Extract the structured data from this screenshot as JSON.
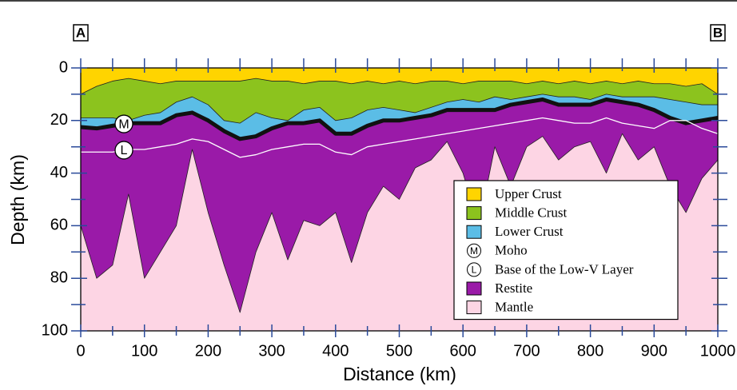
{
  "chart_data": {
    "type": "area",
    "left_label": "A",
    "right_label": "B",
    "x_label": "Distance (km)",
    "y_label": "Depth (km)",
    "x": [
      0,
      25,
      50,
      75,
      100,
      125,
      150,
      175,
      200,
      225,
      250,
      275,
      300,
      325,
      350,
      375,
      400,
      425,
      450,
      475,
      500,
      525,
      550,
      575,
      600,
      625,
      650,
      675,
      700,
      725,
      750,
      775,
      800,
      825,
      850,
      875,
      900,
      925,
      950,
      975,
      1000
    ],
    "series": [
      {
        "name": "Upper Crust",
        "color": "#ffd400",
        "values": [
          10,
          7,
          5,
          4,
          5,
          6,
          5,
          5,
          5,
          5,
          5,
          4,
          5,
          5,
          6,
          5,
          5,
          6,
          5,
          6,
          5,
          6,
          5,
          5,
          6,
          5,
          5,
          5,
          6,
          5,
          6,
          5,
          6,
          5,
          6,
          5,
          6,
          6,
          7,
          6,
          10
        ]
      },
      {
        "name": "Middle Crust",
        "color": "#8cc31e",
        "values": [
          19,
          19,
          19,
          20,
          18,
          17,
          13,
          11,
          14,
          20,
          21,
          17,
          19,
          20,
          16,
          15,
          20,
          19,
          16,
          15,
          16,
          17,
          15,
          13,
          12,
          13,
          11,
          12,
          11,
          10,
          11,
          11,
          12,
          10,
          11,
          11,
          11,
          12,
          13,
          14,
          14
        ]
      },
      {
        "name": "Lower Crust",
        "color": "#5bbde6"
      },
      {
        "name": "Moho",
        "symbol": "M",
        "color": "#111111",
        "values": [
          22.5,
          23,
          22,
          21,
          21,
          21,
          18,
          17,
          20,
          24,
          27,
          26,
          23,
          21,
          21,
          20,
          25,
          25,
          22,
          20,
          20,
          19,
          18,
          16,
          16,
          16,
          16,
          14,
          13,
          12,
          14,
          14,
          14,
          12,
          13,
          14,
          16,
          19,
          21,
          20,
          19
        ]
      },
      {
        "name": "Base of the Low-V Layer",
        "symbol": "L",
        "color": "#ffffff",
        "values": [
          32,
          32,
          32,
          31,
          31,
          30,
          29,
          27,
          28,
          31,
          34,
          33,
          31,
          30,
          29,
          29,
          32,
          33,
          30,
          29,
          28,
          27,
          26,
          25,
          24,
          23,
          22,
          21,
          20,
          19,
          20,
          21,
          21,
          19,
          21,
          22,
          23,
          20,
          20,
          23,
          25
        ]
      },
      {
        "name": "Restite",
        "color": "#9a1aa8",
        "values": [
          60,
          80,
          75,
          48,
          80,
          70,
          60,
          31,
          55,
          75,
          93,
          70,
          55,
          73,
          58,
          60,
          55,
          74,
          55,
          45,
          50,
          38,
          35,
          28,
          40,
          60,
          30,
          45,
          30,
          26,
          35,
          30,
          28,
          40,
          25,
          35,
          30,
          45,
          55,
          42,
          35
        ]
      },
      {
        "name": "Mantle",
        "color": "#fdd5e4"
      }
    ],
    "xlim": [
      0,
      1000
    ],
    "xticks": [
      0,
      100,
      200,
      300,
      400,
      500,
      600,
      700,
      800,
      900,
      1000
    ],
    "xminorticks": [
      50,
      150,
      250,
      350,
      450,
      550,
      650,
      750,
      850,
      950
    ],
    "ylim": [
      0,
      100
    ],
    "yticks": [
      0,
      20,
      40,
      60,
      80,
      100
    ],
    "yminorticks": [
      10,
      30,
      50,
      70,
      90
    ],
    "y_inverted": true
  }
}
